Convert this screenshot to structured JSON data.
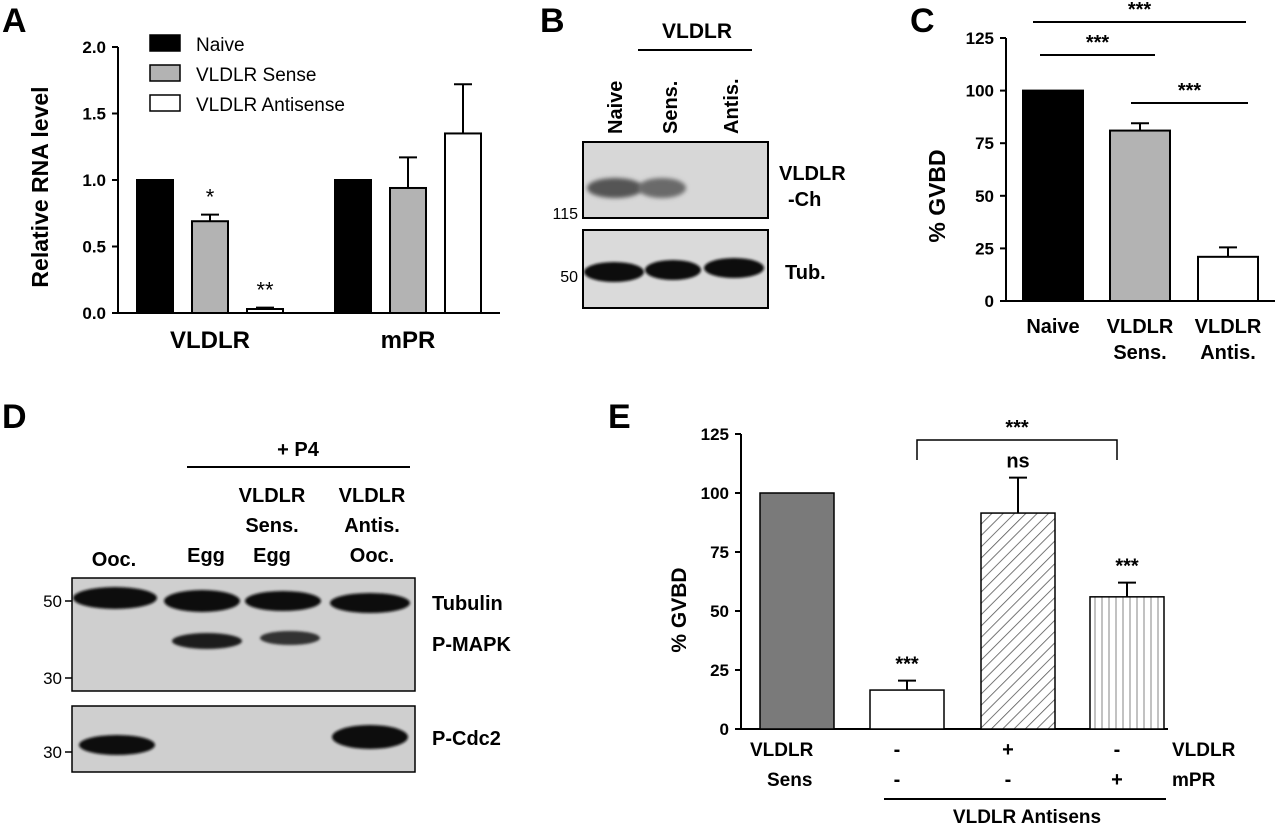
{
  "panels": {
    "A": {
      "letter": "A"
    },
    "B": {
      "letter": "B"
    },
    "C": {
      "letter": "C"
    },
    "D": {
      "letter": "D"
    },
    "E": {
      "letter": "E"
    }
  },
  "chart_data": [
    {
      "id": "A",
      "type": "bar",
      "ylabel": "Relative RNA level",
      "ylim": [
        0,
        2.0
      ],
      "yticks": [
        "0.0",
        "0.5",
        "1.0",
        "1.5",
        "2.0"
      ],
      "groups": [
        "VLDLR",
        "mPR"
      ],
      "legend": {
        "position": "top-left",
        "entries": [
          "Naive",
          "VLDLR Sense",
          "VLDLR Antisense"
        ]
      },
      "series": [
        {
          "name": "Naive",
          "color": "#000000",
          "values": [
            1.0,
            1.0
          ],
          "errors": [
            0,
            0
          ]
        },
        {
          "name": "VLDLR Sense",
          "color": "#b3b3b3",
          "values": [
            0.69,
            0.94
          ],
          "errors": [
            0.05,
            0.23
          ]
        },
        {
          "name": "VLDLR Antisense",
          "color": "#ffffff",
          "values": [
            0.03,
            1.35
          ],
          "errors": [
            0.01,
            0.37
          ]
        }
      ],
      "annotations": [
        {
          "group": 0,
          "series": 1,
          "text": "*"
        },
        {
          "group": 0,
          "series": 2,
          "text": "**"
        }
      ]
    },
    {
      "id": "C",
      "type": "bar",
      "ylabel": "% GVBD",
      "ylim": [
        0,
        125
      ],
      "yticks": [
        "0",
        "25",
        "50",
        "75",
        "100",
        "125"
      ],
      "categories": [
        [
          "Naive"
        ],
        [
          "VLDLR",
          "Sens."
        ],
        [
          "VLDLR",
          "Antis."
        ]
      ],
      "values": [
        100,
        81,
        21
      ],
      "errors": [
        0,
        3.5,
        4.5
      ],
      "colors": [
        "#000000",
        "#b3b3b3",
        "#ffffff"
      ],
      "significance": [
        "***",
        "***",
        "***"
      ]
    },
    {
      "id": "E",
      "type": "bar",
      "ylabel": "% GVBD",
      "ylim": [
        0,
        125
      ],
      "yticks": [
        "0",
        "25",
        "50",
        "75",
        "100",
        "125"
      ],
      "values": [
        100,
        16.5,
        91.5,
        56
      ],
      "errors": [
        0,
        4,
        15,
        6
      ],
      "fills": [
        "gray",
        "white",
        "diag",
        "vert"
      ],
      "bar_labels": [
        "",
        "***",
        "ns",
        "***"
      ],
      "bracket_label": "***",
      "row_labels": {
        "left1": "VLDLR",
        "left2": "Sens",
        "right1": "VLDLR",
        "right2": "mPR"
      },
      "row1": [
        "-",
        "+",
        "-"
      ],
      "row2": [
        "-",
        "-",
        "+"
      ],
      "underline_label": "VLDLR Antisens"
    }
  ],
  "blotB": {
    "header": "VLDLR",
    "lanes": [
      "Naive",
      "Sens.",
      "Antis."
    ],
    "bands": [
      "VLDLR",
      "-Ch",
      "Tub."
    ],
    "markers": [
      "115",
      "50"
    ]
  },
  "blotD": {
    "header": "+ P4",
    "lanes": [
      [
        "Ooc."
      ],
      [
        "Egg"
      ],
      [
        "VLDLR",
        "Sens.",
        "Egg"
      ],
      [
        "VLDLR",
        "Antis.",
        "Ooc."
      ]
    ],
    "bands": [
      "Tubulin",
      "P-MAPK",
      "P-Cdc2"
    ],
    "markers": [
      "50",
      "30",
      "30"
    ]
  }
}
